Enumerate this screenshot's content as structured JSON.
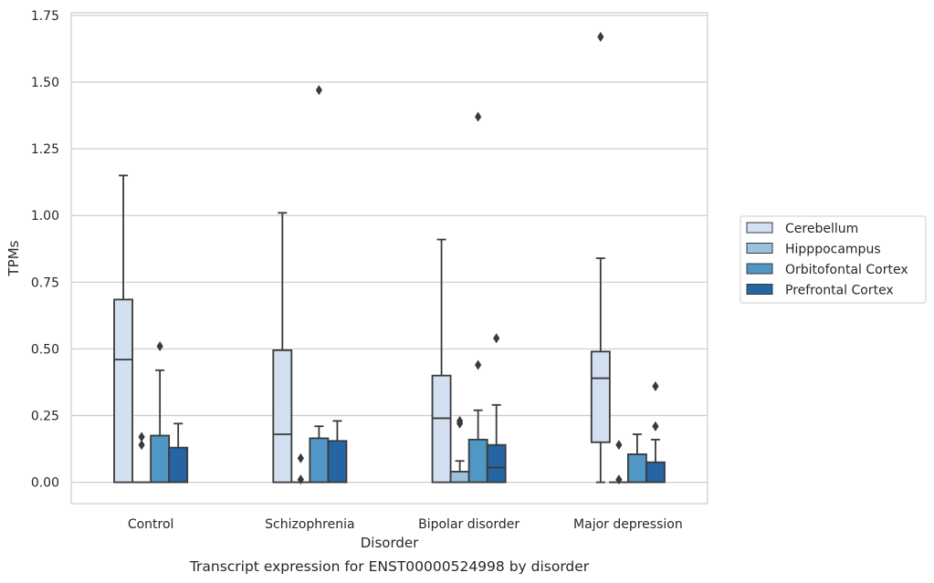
{
  "chart_data": {
    "type": "box",
    "title": "",
    "caption": "Transcript expression for ENST00000524998 by disorder",
    "xlabel": "Disorder",
    "ylabel": "TPMs",
    "ylim": [
      -0.08,
      1.76
    ],
    "yticks": [
      0.0,
      0.25,
      0.5,
      0.75,
      1.0,
      1.25,
      1.5,
      1.75
    ],
    "ytick_labels": [
      "0.00",
      "0.25",
      "0.50",
      "0.75",
      "1.00",
      "1.25",
      "1.50",
      "1.75"
    ],
    "grid": "horizontal",
    "legend_position": "right",
    "categories": [
      "Control",
      "Schizophrenia",
      "Bipolar disorder",
      "Major depression"
    ],
    "series": [
      {
        "name": "Cerebellum",
        "color": "#d2e0f1",
        "boxes": [
          {
            "whisker_low": 0.0,
            "q1": 0.0,
            "median": 0.46,
            "q3": 0.685,
            "whisker_high": 1.15,
            "outliers": []
          },
          {
            "whisker_low": 0.0,
            "q1": 0.0,
            "median": 0.18,
            "q3": 0.495,
            "whisker_high": 1.01,
            "outliers": []
          },
          {
            "whisker_low": 0.0,
            "q1": 0.0,
            "median": 0.24,
            "q3": 0.4,
            "whisker_high": 0.91,
            "outliers": []
          },
          {
            "whisker_low": 0.0,
            "q1": 0.15,
            "median": 0.39,
            "q3": 0.49,
            "whisker_high": 0.84,
            "outliers": [
              1.67
            ]
          }
        ]
      },
      {
        "name": "Hipppocampus",
        "color": "#9ac2dc",
        "boxes": [
          {
            "whisker_low": 0.0,
            "q1": 0.0,
            "median": 0.0,
            "q3": 0.0,
            "whisker_high": 0.0,
            "outliers": [
              0.14,
              0.17
            ]
          },
          {
            "whisker_low": 0.0,
            "q1": 0.0,
            "median": 0.0,
            "q3": 0.0,
            "whisker_high": 0.0,
            "outliers": [
              0.01,
              0.09
            ]
          },
          {
            "whisker_low": 0.0,
            "q1": 0.0,
            "median": 0.0,
            "q3": 0.04,
            "whisker_high": 0.08,
            "outliers": [
              0.22,
              0.23
            ]
          },
          {
            "whisker_low": 0.0,
            "q1": 0.0,
            "median": 0.0,
            "q3": 0.0,
            "whisker_high": 0.0,
            "outliers": [
              0.01,
              0.14
            ]
          }
        ]
      },
      {
        "name": "Orbitofontal Cortex",
        "color": "#5197c6",
        "boxes": [
          {
            "whisker_low": 0.0,
            "q1": 0.0,
            "median": 0.0,
            "q3": 0.175,
            "whisker_high": 0.42,
            "outliers": [
              0.51
            ]
          },
          {
            "whisker_low": 0.0,
            "q1": 0.0,
            "median": 0.0,
            "q3": 0.165,
            "whisker_high": 0.21,
            "outliers": [
              1.47
            ]
          },
          {
            "whisker_low": 0.0,
            "q1": 0.0,
            "median": 0.0,
            "q3": 0.16,
            "whisker_high": 0.27,
            "outliers": [
              0.44,
              1.37
            ]
          },
          {
            "whisker_low": 0.0,
            "q1": 0.0,
            "median": 0.0,
            "q3": 0.105,
            "whisker_high": 0.18,
            "outliers": []
          }
        ]
      },
      {
        "name": "Prefrontal Cortex",
        "color": "#2565a4",
        "boxes": [
          {
            "whisker_low": 0.0,
            "q1": 0.0,
            "median": 0.0,
            "q3": 0.13,
            "whisker_high": 0.22,
            "outliers": []
          },
          {
            "whisker_low": 0.0,
            "q1": 0.0,
            "median": 0.0,
            "q3": 0.155,
            "whisker_high": 0.23,
            "outliers": []
          },
          {
            "whisker_low": 0.0,
            "q1": 0.0,
            "median": 0.055,
            "q3": 0.14,
            "whisker_high": 0.29,
            "outliers": [
              0.54
            ]
          },
          {
            "whisker_low": 0.0,
            "q1": 0.0,
            "median": 0.0,
            "q3": 0.075,
            "whisker_high": 0.16,
            "outliers": [
              0.21,
              0.36
            ]
          }
        ]
      }
    ]
  }
}
